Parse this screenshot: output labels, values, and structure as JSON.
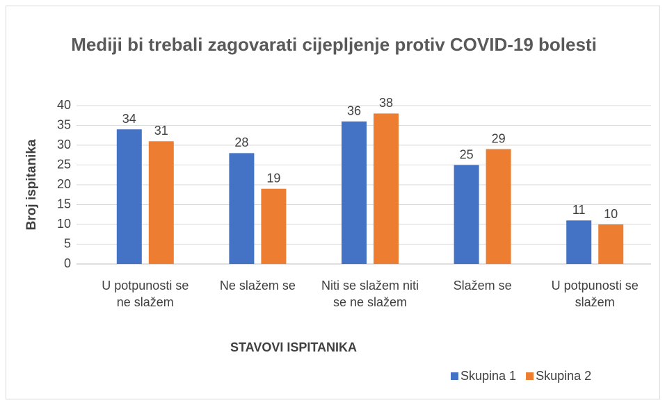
{
  "chart_data": {
    "type": "bar",
    "title": "Mediji bi trebali zagovarati cijepljenje protiv COVID-19 bolesti",
    "x_label": "STAVOVI ISPITANIKA",
    "y_label": "Broj ispitanika",
    "categories": [
      "U potpunosti se ne slažem",
      "Ne slažem se",
      "Niti se slažem niti se ne slažem",
      "Slažem se",
      "U potpunosti se slažem"
    ],
    "series": [
      {
        "name": "Skupina 1",
        "color": "#4472c4",
        "values": [
          34,
          28,
          36,
          25,
          11
        ]
      },
      {
        "name": "Skupina 2",
        "color": "#ed7d31",
        "values": [
          31,
          19,
          38,
          29,
          10
        ]
      }
    ],
    "ylim": [
      0,
      40
    ],
    "yticks": [
      0,
      5,
      10,
      15,
      20,
      25,
      30,
      35,
      40
    ],
    "grid": true,
    "legend": "bottom-right"
  }
}
